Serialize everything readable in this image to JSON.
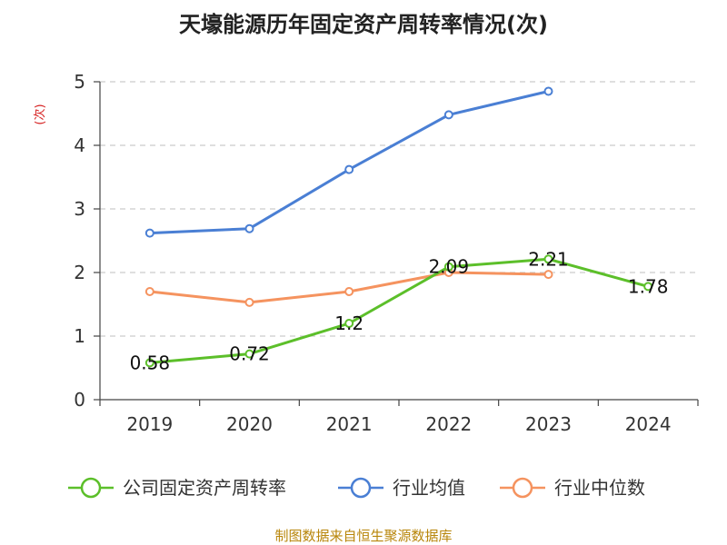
{
  "title": "天壕能源历年固定资产周转率情况(次)",
  "source": "制图数据来自恒生聚源数据库",
  "chart_data": {
    "type": "line",
    "title": "天壕能源历年固定资产周转率情况(次)",
    "ylabel": "(次)",
    "xlabel": "",
    "categories": [
      "2019",
      "2020",
      "2021",
      "2022",
      "2023",
      "2024"
    ],
    "ylim": [
      0,
      5
    ],
    "yticks": [
      0,
      1,
      2,
      3,
      4,
      5
    ],
    "grid": true,
    "legend_position": "bottom",
    "series": [
      {
        "name": "公司固定资产周转率",
        "color": "#5cbf2a",
        "values": [
          0.58,
          0.72,
          1.2,
          2.09,
          2.21,
          1.78
        ],
        "labels": [
          "0.58",
          "0.72",
          "1.2",
          "2.09",
          "2.21",
          "1.78"
        ]
      },
      {
        "name": "行业均值",
        "color": "#4a7fd4",
        "values": [
          2.62,
          2.69,
          3.62,
          4.48,
          4.85,
          null
        ]
      },
      {
        "name": "行业中位数",
        "color": "#f5935f",
        "values": [
          1.7,
          1.53,
          1.7,
          2.0,
          1.97,
          null
        ]
      }
    ]
  }
}
